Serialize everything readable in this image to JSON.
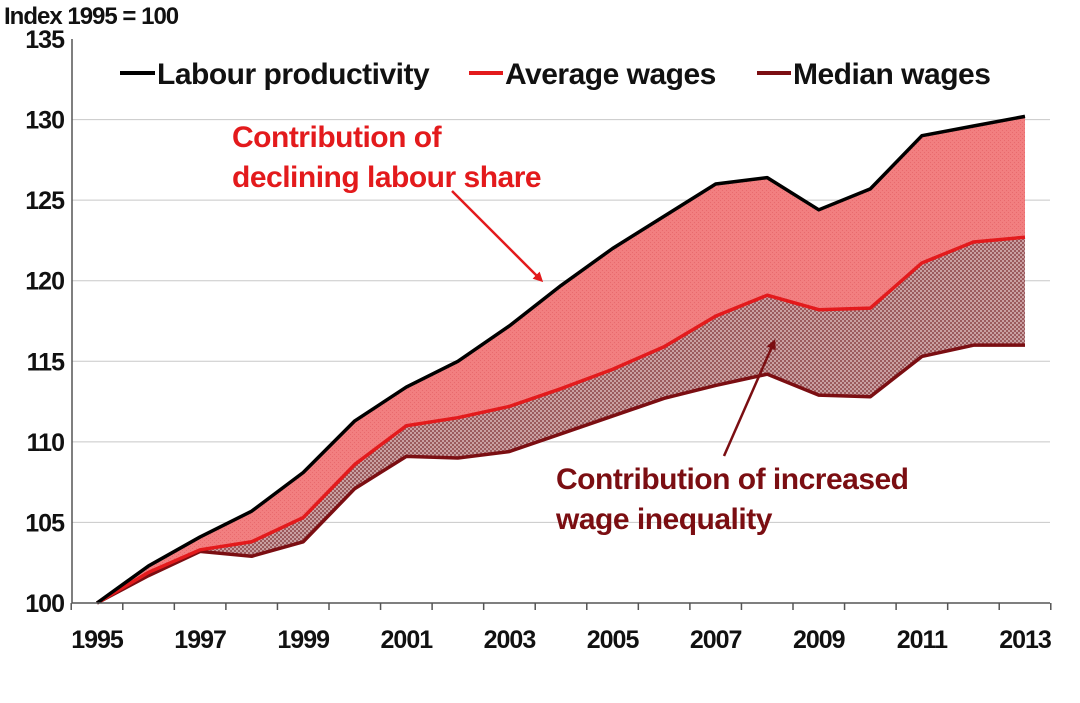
{
  "chart_data": {
    "type": "area",
    "unit_label": "Index 1995 = 100",
    "x": [
      1995,
      1996,
      1997,
      1998,
      1999,
      2000,
      2001,
      2002,
      2003,
      2004,
      2005,
      2006,
      2007,
      2008,
      2009,
      2010,
      2011,
      2012,
      2013
    ],
    "x_tick_labels": [
      "1995",
      "1997",
      "1999",
      "2001",
      "2003",
      "2005",
      "2007",
      "2009",
      "2011",
      "2013"
    ],
    "ylim": [
      100,
      135
    ],
    "y_ticks": [
      100,
      105,
      110,
      115,
      120,
      125,
      130,
      135
    ],
    "grid": true,
    "legend_position": "top",
    "series": [
      {
        "name": "Labour productivity",
        "color": "#000000",
        "values": [
          100,
          102.3,
          104.1,
          105.7,
          108.1,
          111.3,
          113.4,
          115.0,
          117.2,
          119.7,
          122.0,
          124.0,
          126.0,
          126.4,
          124.4,
          125.7,
          129.0,
          129.6,
          130.2
        ]
      },
      {
        "name": "Average wages",
        "color": "#e31a1c",
        "values": [
          100,
          101.9,
          103.3,
          103.8,
          105.3,
          108.6,
          111.0,
          111.5,
          112.2,
          113.3,
          114.5,
          115.9,
          117.8,
          119.1,
          118.2,
          118.3,
          121.1,
          122.4,
          122.7
        ]
      },
      {
        "name": "Median wages",
        "color": "#7b0e12",
        "values": [
          100,
          101.7,
          103.2,
          102.9,
          103.8,
          107.1,
          109.1,
          109.0,
          109.4,
          110.5,
          111.6,
          112.7,
          113.5,
          114.2,
          112.9,
          112.8,
          115.3,
          116.0,
          116.0
        ]
      }
    ],
    "annotations": [
      {
        "lines": [
          "Contribution of",
          "declining labour share"
        ],
        "color": "#e31a1c"
      },
      {
        "lines": [
          "Contribution of increased",
          "wage inequality"
        ],
        "color": "#7b0e12"
      }
    ]
  }
}
